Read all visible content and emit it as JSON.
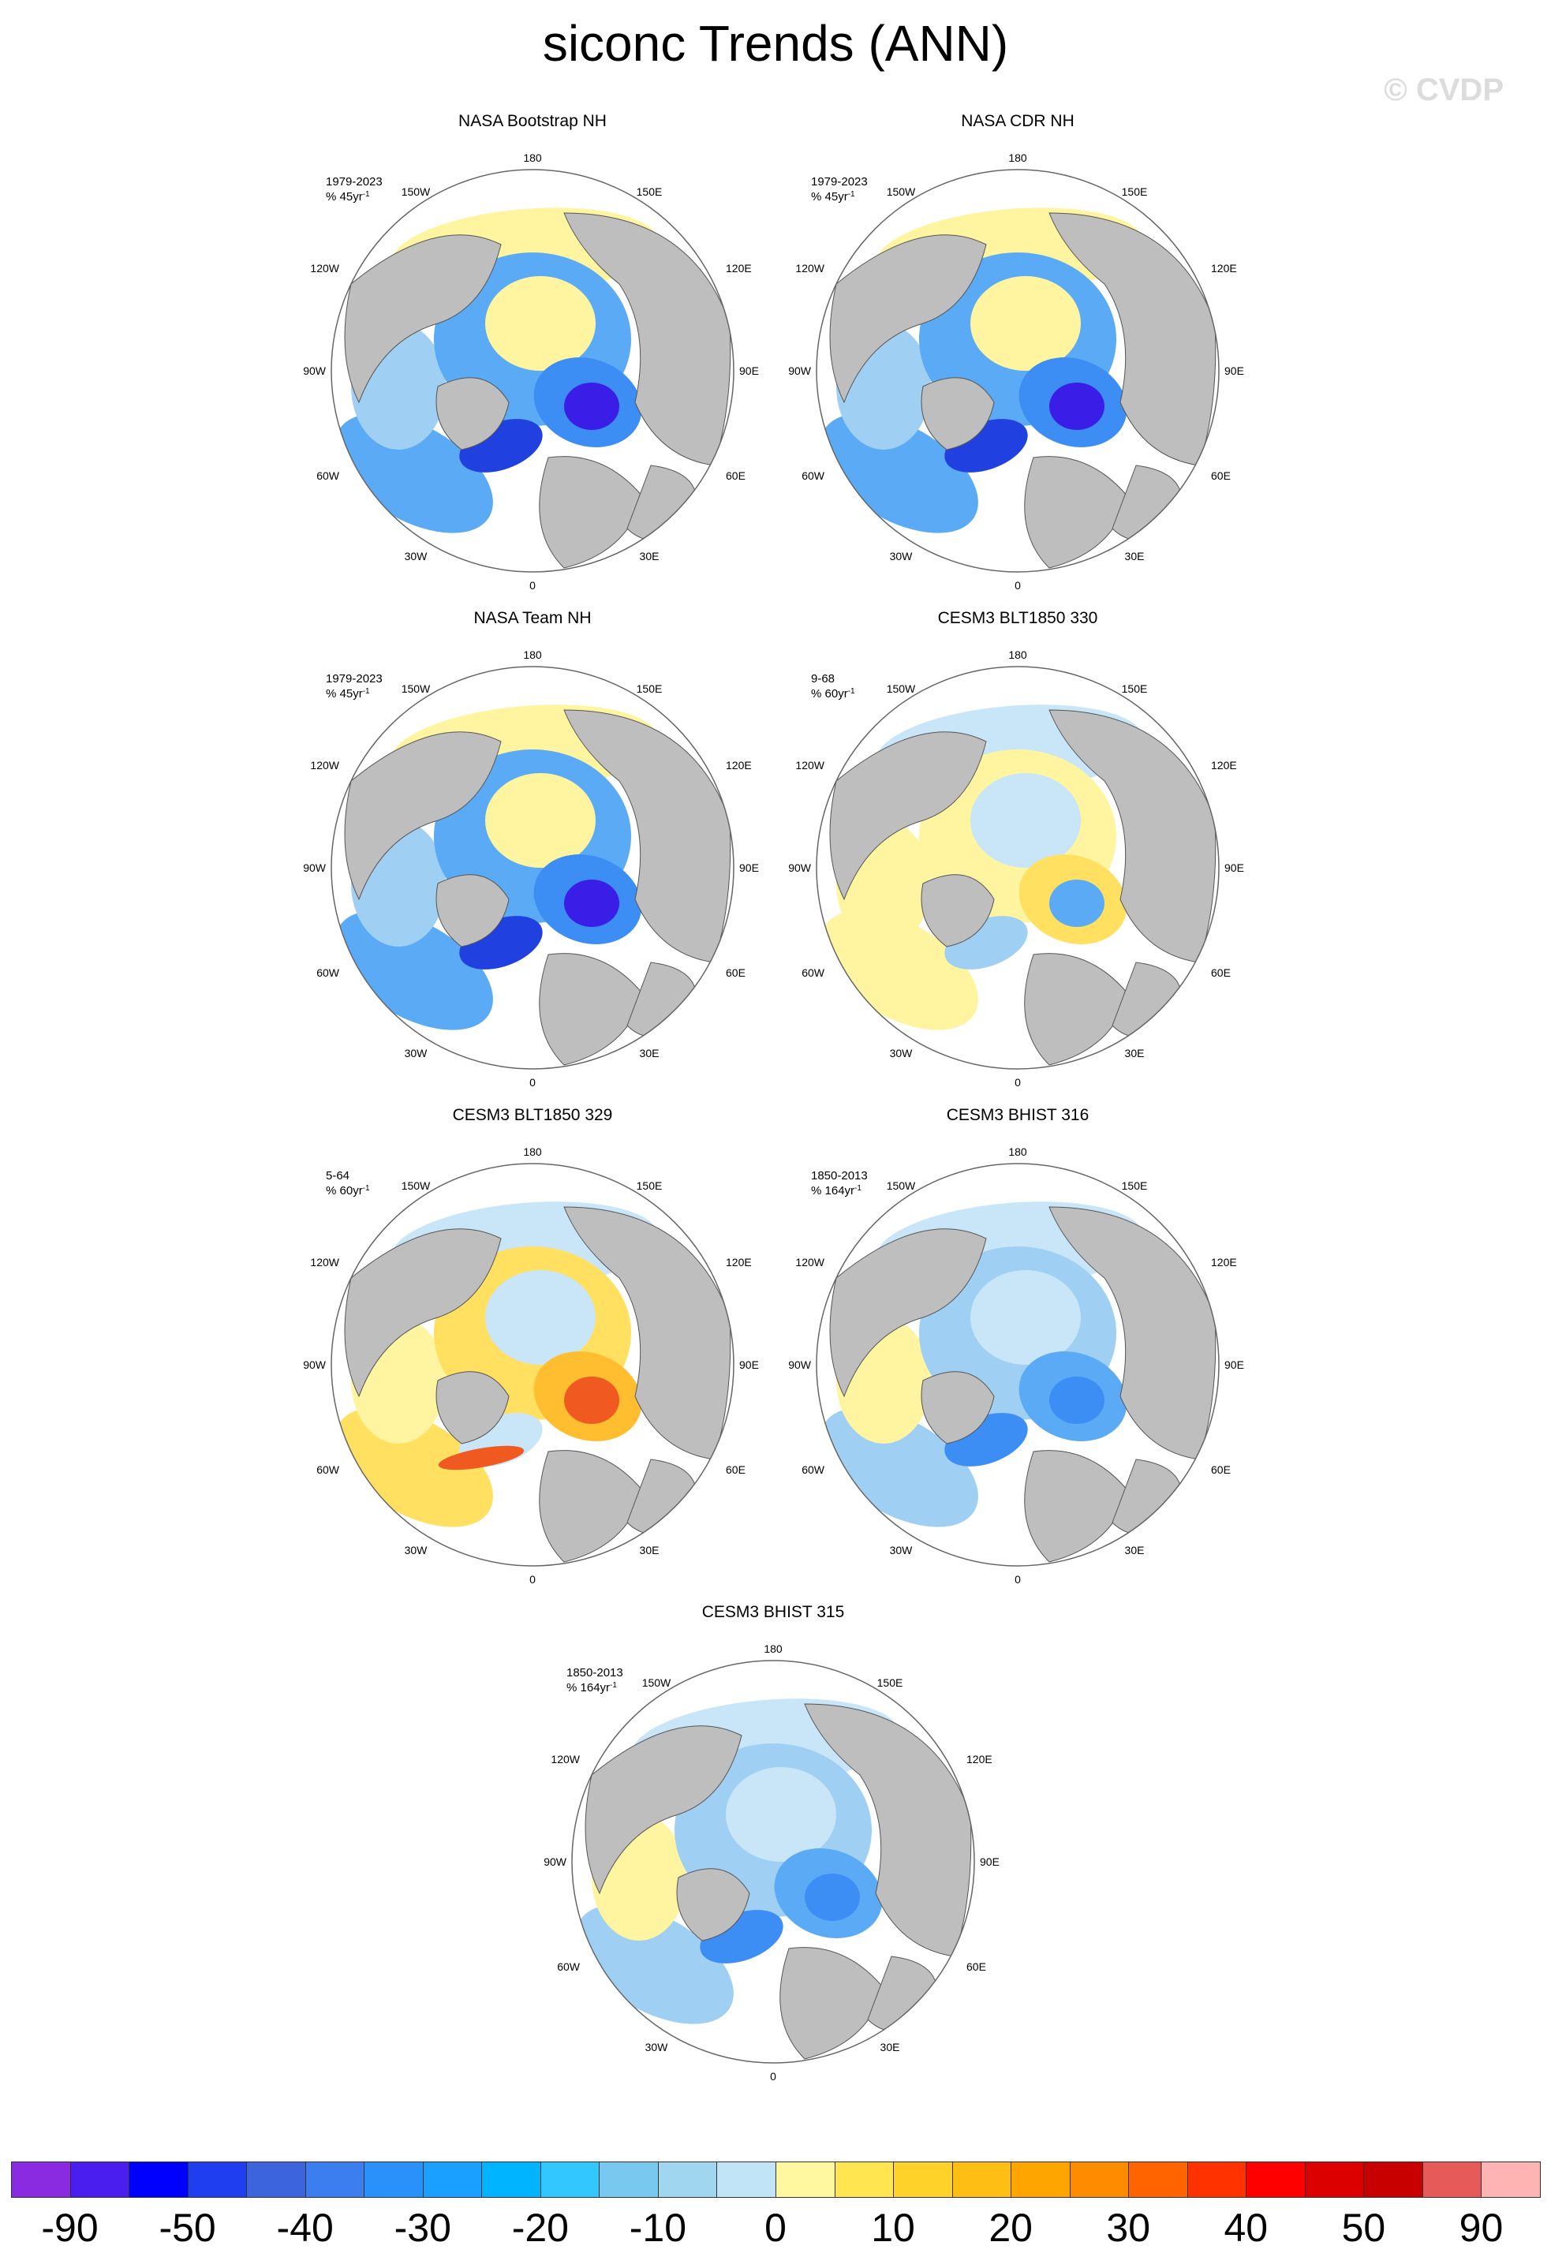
{
  "title": "siconc Trends (ANN)",
  "watermark": "© CVDP",
  "longitude_labels": {
    "top": "180",
    "bottom": "0",
    "left_upper": "150W",
    "left_mid_upper": "120W",
    "left": "90W",
    "left_mid_lower": "60W",
    "left_lower": "30W",
    "right_upper": "150E",
    "right_mid_upper": "120E",
    "right": "90E",
    "right_mid_lower": "60E",
    "right_lower": "30E"
  },
  "panels": [
    {
      "title": "NASA Bootstrap NH",
      "period": "1979-2023",
      "units": "% 45yr",
      "units_sup": "-1",
      "pattern": "obs"
    },
    {
      "title": "NASA CDR NH",
      "period": "1979-2023",
      "units": "% 45yr",
      "units_sup": "-1",
      "pattern": "obs"
    },
    {
      "title": "NASA Team NH",
      "period": "1979-2023",
      "units": "% 45yr",
      "units_sup": "-1",
      "pattern": "obs"
    },
    {
      "title": "CESM3 BLT1850 330",
      "period": "9-68",
      "units": "% 60yr",
      "units_sup": "-1",
      "pattern": "ctrl330"
    },
    {
      "title": "CESM3 BLT1850 329",
      "period": "5-64",
      "units": "% 60yr",
      "units_sup": "-1",
      "pattern": "ctrl329"
    },
    {
      "title": "CESM3 BHIST 316",
      "period": "1850-2013",
      "units": "% 164yr",
      "units_sup": "-1",
      "pattern": "hist"
    },
    {
      "title": "CESM3 BHIST 315",
      "period": "1850-2013",
      "units": "% 164yr",
      "units_sup": "-1",
      "pattern": "hist"
    }
  ],
  "colorbar": {
    "colors": [
      "#8a2be2",
      "#4b1ef0",
      "#0000ff",
      "#1f3ef0",
      "#3c64dc",
      "#3c7ef0",
      "#2a90fa",
      "#1aa0ff",
      "#00b4ff",
      "#32c8ff",
      "#78c8f0",
      "#a0d6f0",
      "#c2e4f7",
      "#fff8a0",
      "#ffe650",
      "#ffd22a",
      "#ffbe14",
      "#ffa500",
      "#ff8c00",
      "#ff6400",
      "#ff3200",
      "#ff0000",
      "#dc0000",
      "#c80000",
      "#e65a5a",
      "#ffb4b4"
    ],
    "labels": [
      "-90",
      "-50",
      "-40",
      "-30",
      "-20",
      "-10",
      "0",
      "10",
      "20",
      "30",
      "40",
      "50",
      "90"
    ]
  },
  "colors": {
    "land": "#bebebe",
    "ocean": "#ffffff",
    "frame": "#666666"
  }
}
